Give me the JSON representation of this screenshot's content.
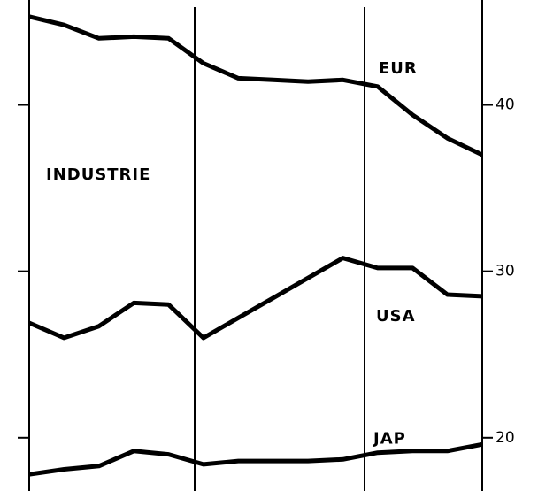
{
  "chart_data": {
    "type": "line",
    "annotations": [
      "INDUSTRIE"
    ],
    "categories": [
      null,
      null,
      null,
      null,
      null,
      null,
      null,
      null,
      null,
      null,
      null,
      null,
      null,
      null
    ],
    "series": [
      {
        "name": "EUR",
        "color": "#000000",
        "values": [
          45.3,
          44.8,
          44.0,
          44.1,
          44.0,
          42.5,
          41.6,
          41.5,
          41.4,
          41.5,
          41.1,
          39.4,
          38.0,
          37.0
        ]
      },
      {
        "name": "USA",
        "color": "#000000",
        "values": [
          26.9,
          26.0,
          26.7,
          28.1,
          28.0,
          26.0,
          27.2,
          28.4,
          29.6,
          30.8,
          30.2,
          30.2,
          28.6,
          28.5
        ]
      },
      {
        "name": "JAP",
        "color": "#000000",
        "values": [
          17.8,
          18.1,
          18.3,
          19.2,
          19.0,
          18.4,
          18.6,
          18.6,
          18.6,
          18.7,
          19.1,
          19.2,
          19.2,
          19.6
        ]
      }
    ],
    "ylim": [
      16.8,
      46.3
    ],
    "yticks": [
      20,
      30,
      40
    ]
  }
}
